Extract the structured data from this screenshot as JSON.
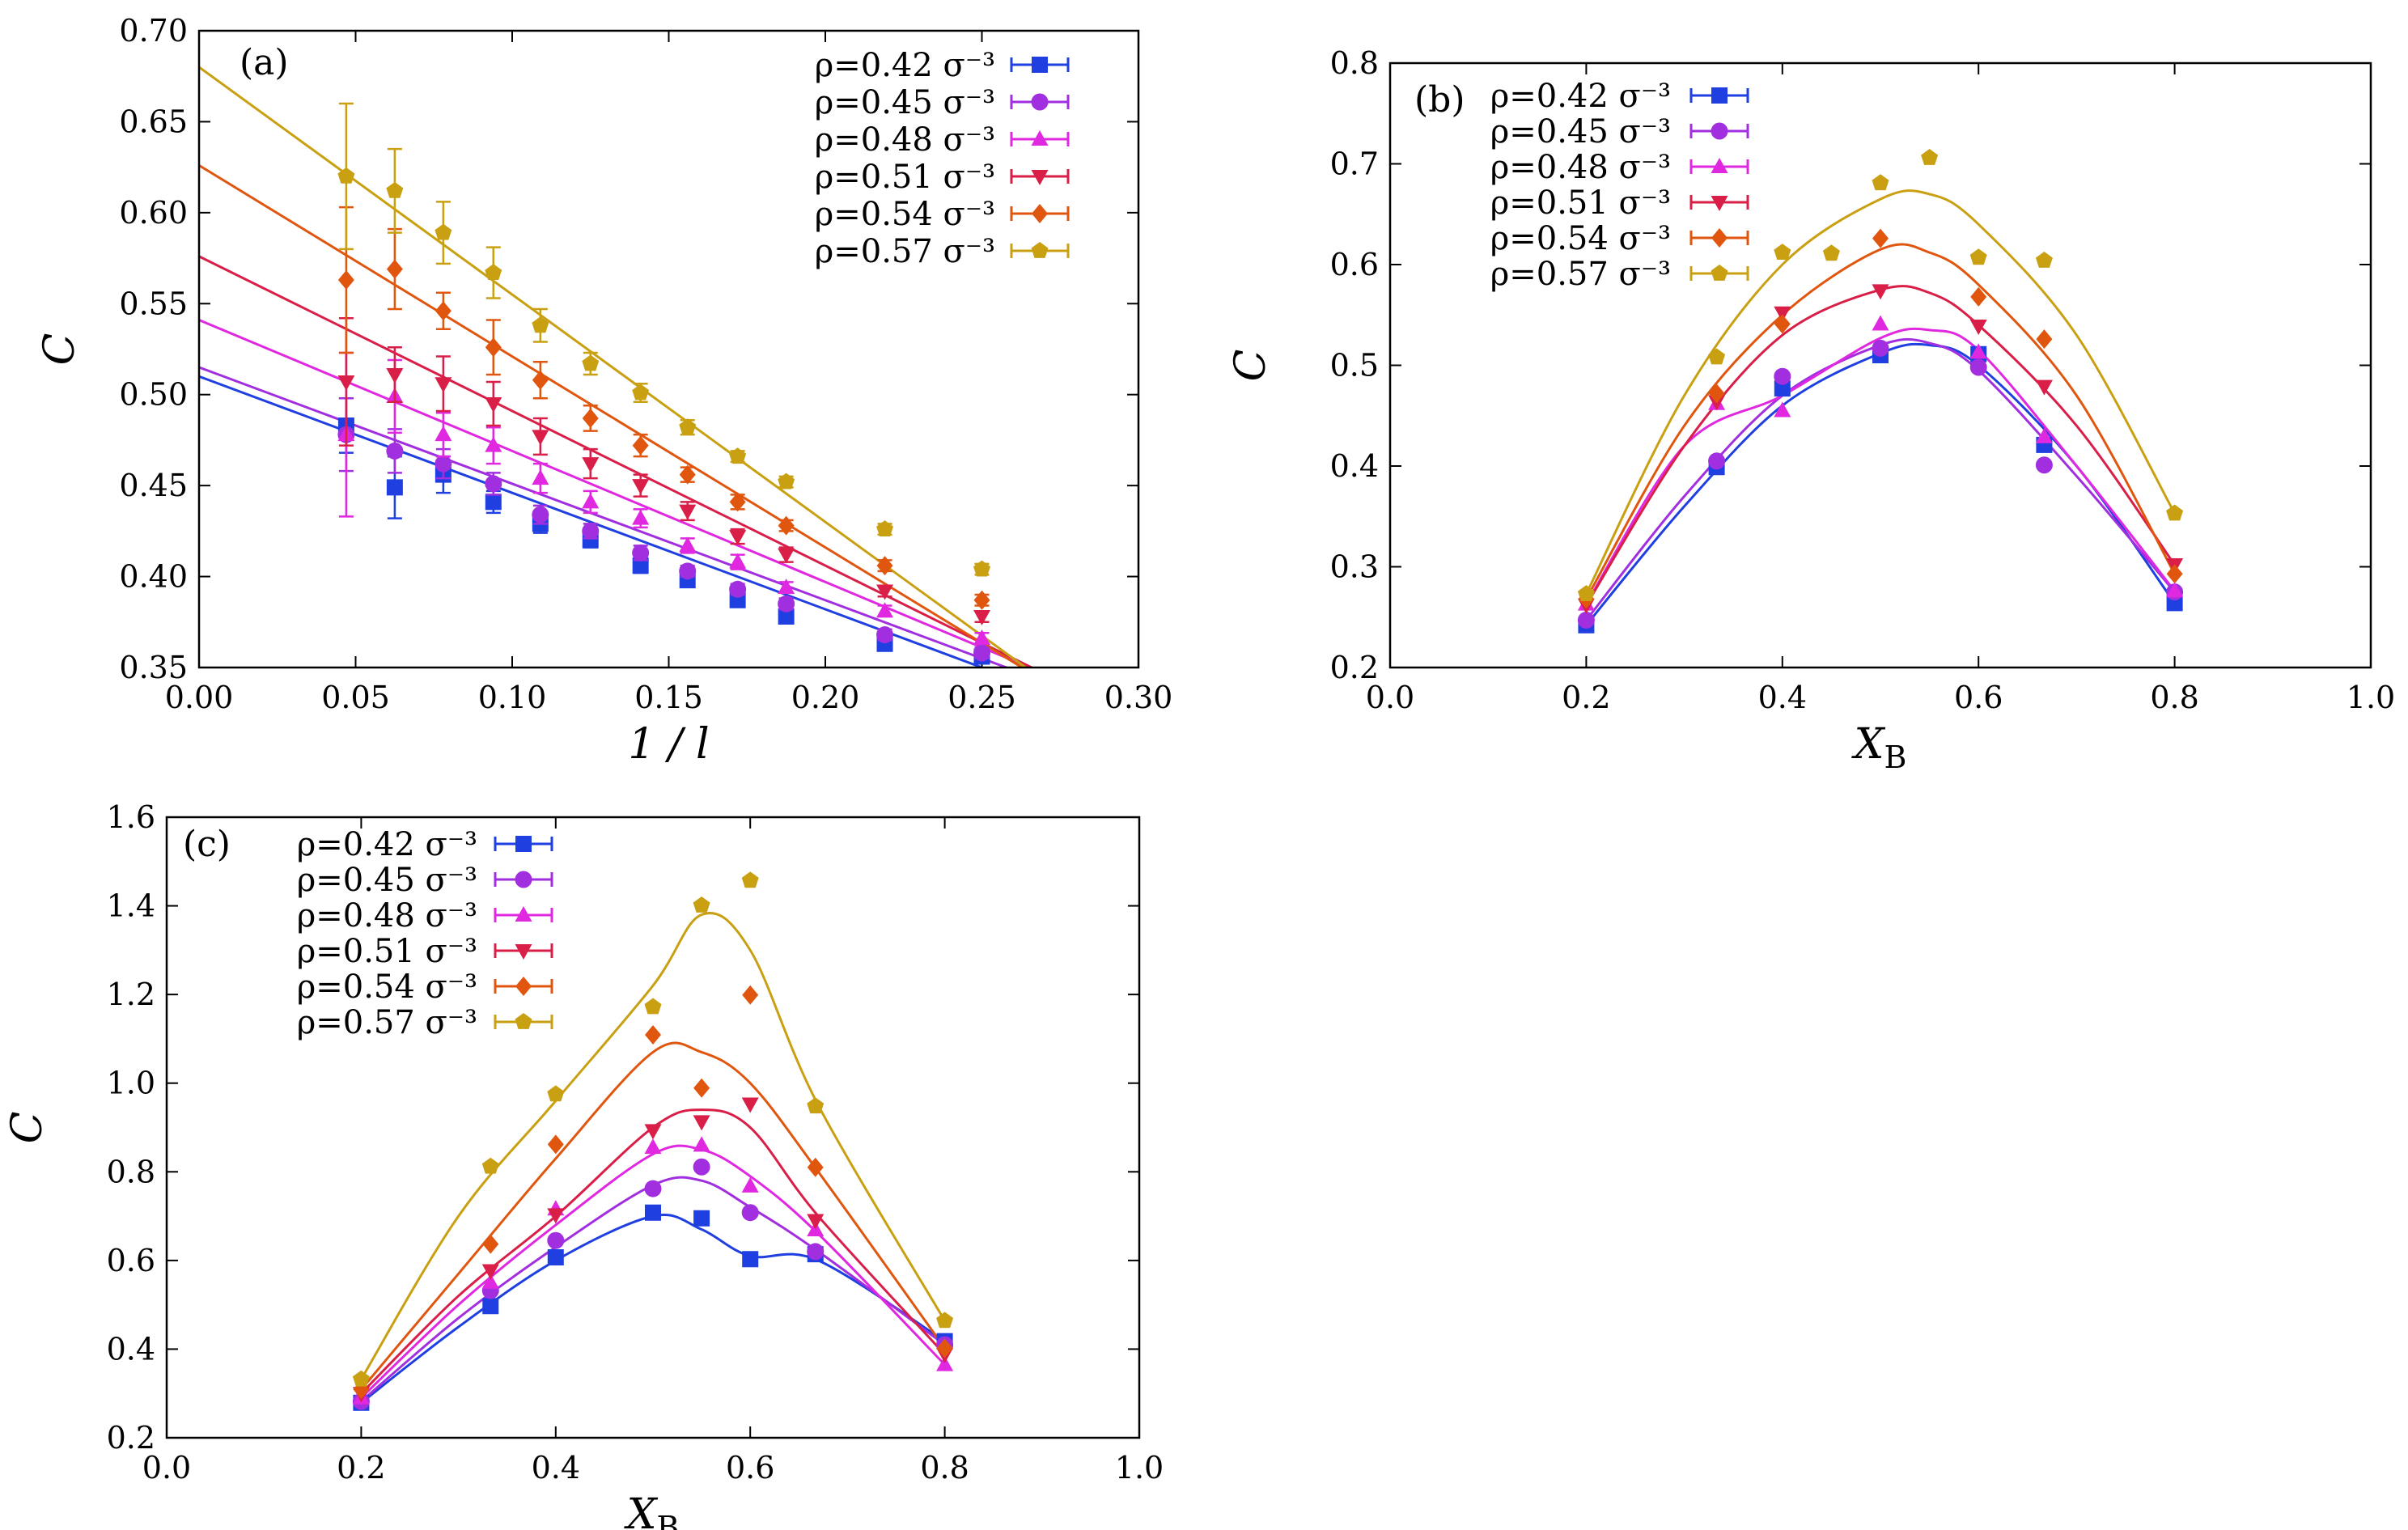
{
  "chart_data": [
    {
      "type": "scatter",
      "panel_label": "(a)",
      "xlabel": "1 / l",
      "ylabel": "C",
      "xlim": [
        0.0,
        0.3
      ],
      "ylim": [
        0.35,
        0.7
      ],
      "xticks": [
        "0.00",
        "0.05",
        "0.10",
        "0.15",
        "0.20",
        "0.25",
        "0.30"
      ],
      "yticks": [
        "0.35",
        "0.40",
        "0.45",
        "0.50",
        "0.55",
        "0.60",
        "0.65",
        "0.70"
      ],
      "legend_position": "top-right",
      "fit": "linear",
      "series": [
        {
          "name": "ρ=0.42 σ⁻³",
          "color": "#1f3fe0",
          "marker": "square",
          "x": [
            0.047,
            0.0625,
            0.078,
            0.094,
            0.109,
            0.125,
            0.141,
            0.156,
            0.172,
            0.1875,
            0.219,
            0.25
          ],
          "y": [
            0.483,
            0.449,
            0.456,
            0.441,
            0.429,
            0.42,
            0.406,
            0.398,
            0.387,
            0.378,
            0.363,
            0.356
          ],
          "err": [
            0.015,
            0.017,
            0.01,
            0.006,
            0.005,
            0.004,
            0.004,
            0.003,
            0.003,
            0.003,
            0.003,
            0.003
          ],
          "fit_line": [
            0.51,
            -0.64
          ]
        },
        {
          "name": "ρ=0.45 σ⁻³",
          "color": "#a12fe0",
          "marker": "circle",
          "x": [
            0.047,
            0.0625,
            0.078,
            0.094,
            0.109,
            0.125,
            0.141,
            0.156,
            0.172,
            0.1875,
            0.219,
            0.25
          ],
          "y": [
            0.478,
            0.469,
            0.462,
            0.451,
            0.434,
            0.425,
            0.413,
            0.403,
            0.393,
            0.385,
            0.368,
            0.358
          ],
          "err": [
            0.02,
            0.012,
            0.008,
            0.006,
            0.005,
            0.004,
            0.004,
            0.003,
            0.003,
            0.003,
            0.003,
            0.003
          ],
          "fit_line": [
            0.515,
            -0.64
          ]
        },
        {
          "name": "ρ=0.48 σ⁻³",
          "color": "#e028e0",
          "marker": "triangle",
          "x": [
            0.047,
            0.0625,
            0.078,
            0.094,
            0.109,
            0.125,
            0.141,
            0.156,
            0.172,
            0.1875,
            0.219,
            0.25
          ],
          "y": [
            0.478,
            0.499,
            0.478,
            0.472,
            0.454,
            0.441,
            0.432,
            0.417,
            0.408,
            0.394,
            0.381,
            0.366
          ],
          "err": [
            0.045,
            0.02,
            0.012,
            0.01,
            0.008,
            0.006,
            0.005,
            0.004,
            0.004,
            0.003,
            0.003,
            0.003
          ],
          "fit_line": [
            0.541,
            -0.72
          ]
        },
        {
          "name": "ρ=0.51 σ⁻³",
          "color": "#d91e48",
          "marker": "triangle-down",
          "x": [
            0.047,
            0.0625,
            0.078,
            0.094,
            0.109,
            0.125,
            0.141,
            0.156,
            0.172,
            0.1875,
            0.219,
            0.25
          ],
          "y": [
            0.507,
            0.511,
            0.506,
            0.495,
            0.477,
            0.462,
            0.45,
            0.436,
            0.422,
            0.412,
            0.392,
            0.378
          ],
          "err": [
            0.035,
            0.015,
            0.015,
            0.012,
            0.01,
            0.008,
            0.006,
            0.005,
            0.004,
            0.004,
            0.003,
            0.003
          ],
          "fit_line": [
            0.576,
            -0.85
          ]
        },
        {
          "name": "ρ=0.54 σ⁻³",
          "color": "#e0560f",
          "marker": "diamond",
          "x": [
            0.047,
            0.0625,
            0.078,
            0.094,
            0.109,
            0.125,
            0.141,
            0.156,
            0.172,
            0.1875,
            0.219,
            0.25
          ],
          "y": [
            0.563,
            0.569,
            0.546,
            0.526,
            0.508,
            0.487,
            0.472,
            0.456,
            0.441,
            0.428,
            0.406,
            0.387
          ],
          "err": [
            0.04,
            0.022,
            0.01,
            0.015,
            0.01,
            0.007,
            0.006,
            0.004,
            0.004,
            0.003,
            0.003,
            0.003
          ],
          "fit_line": [
            0.626,
            -1.05
          ]
        },
        {
          "name": "ρ=0.57 σ⁻³",
          "color": "#c9a012",
          "marker": "pentagon",
          "x": [
            0.047,
            0.0625,
            0.078,
            0.094,
            0.109,
            0.125,
            0.141,
            0.156,
            0.172,
            0.1875,
            0.219,
            0.25
          ],
          "y": [
            0.62,
            0.612,
            0.589,
            0.567,
            0.538,
            0.517,
            0.501,
            0.482,
            0.466,
            0.452,
            0.426,
            0.404
          ],
          "err": [
            0.04,
            0.023,
            0.017,
            0.014,
            0.009,
            0.006,
            0.005,
            0.004,
            0.003,
            0.003,
            0.003,
            0.003
          ],
          "fit_line": [
            0.68,
            -1.25
          ]
        }
      ]
    },
    {
      "type": "scatter",
      "panel_label": "(b)",
      "xlabel": "X",
      "xlabel_sub": "B",
      "ylabel": "C",
      "xlim": [
        0.0,
        1.0
      ],
      "ylim": [
        0.2,
        0.8
      ],
      "xticks": [
        "0.0",
        "0.2",
        "0.4",
        "0.6",
        "0.8",
        "1.0"
      ],
      "yticks": [
        "0.2",
        "0.3",
        "0.4",
        "0.5",
        "0.6",
        "0.7",
        "0.8"
      ],
      "legend_position": "top-left",
      "series": [
        {
          "name": "ρ=0.42 σ⁻³",
          "color": "#1f3fe0",
          "marker": "square",
          "x": [
            0.2,
            0.333,
            0.4,
            0.5,
            0.6,
            0.667,
            0.8
          ],
          "y": [
            0.242,
            0.399,
            0.477,
            0.51,
            0.511,
            0.421,
            0.264
          ],
          "curve_x": [
            0.2,
            0.3,
            0.4,
            0.5,
            0.55,
            0.6,
            0.7,
            0.8
          ],
          "curve_y": [
            0.242,
            0.36,
            0.46,
            0.512,
            0.52,
            0.5,
            0.4,
            0.264
          ]
        },
        {
          "name": "ρ=0.45 σ⁻³",
          "color": "#a12fe0",
          "marker": "circle",
          "x": [
            0.2,
            0.333,
            0.4,
            0.5,
            0.6,
            0.667,
            0.8
          ],
          "y": [
            0.247,
            0.405,
            0.489,
            0.517,
            0.498,
            0.401,
            0.275
          ],
          "curve_x": [
            0.2,
            0.3,
            0.4,
            0.5,
            0.55,
            0.6,
            0.7,
            0.8
          ],
          "curve_y": [
            0.247,
            0.37,
            0.47,
            0.52,
            0.522,
            0.495,
            0.39,
            0.275
          ]
        },
        {
          "name": "ρ=0.48 σ⁻³",
          "color": "#e028e0",
          "marker": "triangle",
          "x": [
            0.2,
            0.333,
            0.4,
            0.5,
            0.6,
            0.667,
            0.8
          ],
          "y": [
            0.263,
            0.462,
            0.455,
            0.541,
            0.513,
            0.429,
            0.276
          ],
          "curve_x": [
            0.2,
            0.3,
            0.4,
            0.5,
            0.55,
            0.6,
            0.7,
            0.8
          ],
          "curve_y": [
            0.263,
            0.42,
            0.47,
            0.527,
            0.535,
            0.515,
            0.4,
            0.276
          ]
        },
        {
          "name": "ρ=0.51 σ⁻³",
          "color": "#d91e48",
          "marker": "triangle-down",
          "x": [
            0.2,
            0.333,
            0.4,
            0.5,
            0.6,
            0.667,
            0.8
          ],
          "y": [
            0.262,
            0.464,
            0.552,
            0.574,
            0.539,
            0.479,
            0.302
          ],
          "curve_x": [
            0.2,
            0.3,
            0.4,
            0.5,
            0.55,
            0.6,
            0.7,
            0.8
          ],
          "curve_y": [
            0.262,
            0.42,
            0.53,
            0.575,
            0.572,
            0.54,
            0.44,
            0.302
          ]
        },
        {
          "name": "ρ=0.54 σ⁻³",
          "color": "#e0560f",
          "marker": "diamond",
          "x": [
            0.2,
            0.333,
            0.4,
            0.5,
            0.6,
            0.667,
            0.8
          ],
          "y": [
            0.268,
            0.472,
            0.541,
            0.626,
            0.568,
            0.526,
            0.293
          ],
          "curve_x": [
            0.2,
            0.3,
            0.4,
            0.5,
            0.55,
            0.6,
            0.7,
            0.8
          ],
          "curve_y": [
            0.268,
            0.44,
            0.55,
            0.615,
            0.612,
            0.58,
            0.47,
            0.293
          ]
        },
        {
          "name": "ρ=0.57 σ⁻³",
          "color": "#c9a012",
          "marker": "pentagon",
          "x": [
            0.2,
            0.333,
            0.4,
            0.45,
            0.5,
            0.55,
            0.6,
            0.667,
            0.8
          ],
          "y": [
            0.273,
            0.508,
            0.612,
            0.611,
            0.681,
            0.706,
            0.607,
            0.604,
            0.353
          ],
          "curve_x": [
            0.2,
            0.3,
            0.4,
            0.5,
            0.55,
            0.6,
            0.7,
            0.8
          ],
          "curve_y": [
            0.273,
            0.47,
            0.6,
            0.665,
            0.67,
            0.64,
            0.53,
            0.353
          ]
        }
      ]
    },
    {
      "type": "scatter",
      "panel_label": "(c)",
      "xlabel": "X",
      "xlabel_sub": "B",
      "ylabel": "C",
      "xlim": [
        0.0,
        1.0
      ],
      "ylim": [
        0.2,
        1.6
      ],
      "xticks": [
        "0.0",
        "0.2",
        "0.4",
        "0.6",
        "0.8",
        "1.0"
      ],
      "yticks": [
        "0.2",
        "0.4",
        "0.6",
        "0.8",
        "1.0",
        "1.2",
        "1.4",
        "1.6"
      ],
      "legend_position": "top-left",
      "series": [
        {
          "name": "ρ=0.42 σ⁻³",
          "color": "#1f3fe0",
          "marker": "square",
          "x": [
            0.2,
            0.333,
            0.4,
            0.5,
            0.55,
            0.6,
            0.667,
            0.8
          ],
          "y": [
            0.279,
            0.497,
            0.607,
            0.708,
            0.695,
            0.603,
            0.614,
            0.418
          ],
          "curve_x": [
            0.2,
            0.3,
            0.4,
            0.5,
            0.55,
            0.6,
            0.67,
            0.8
          ],
          "curve_y": [
            0.279,
            0.45,
            0.6,
            0.7,
            0.67,
            0.61,
            0.6,
            0.418
          ]
        },
        {
          "name": "ρ=0.45 σ⁻³",
          "color": "#a12fe0",
          "marker": "circle",
          "x": [
            0.2,
            0.333,
            0.4,
            0.5,
            0.55,
            0.6,
            0.667,
            0.8
          ],
          "y": [
            0.282,
            0.532,
            0.645,
            0.762,
            0.811,
            0.708,
            0.62,
            0.41
          ],
          "curve_x": [
            0.2,
            0.3,
            0.4,
            0.5,
            0.55,
            0.6,
            0.67,
            0.8
          ],
          "curve_y": [
            0.282,
            0.47,
            0.63,
            0.77,
            0.78,
            0.72,
            0.62,
            0.41
          ]
        },
        {
          "name": "ρ=0.48 σ⁻³",
          "color": "#e028e0",
          "marker": "triangle",
          "x": [
            0.2,
            0.333,
            0.4,
            0.5,
            0.55,
            0.6,
            0.667,
            0.8
          ],
          "y": [
            0.29,
            0.551,
            0.716,
            0.855,
            0.86,
            0.768,
            0.669,
            0.365
          ],
          "curve_x": [
            0.2,
            0.3,
            0.4,
            0.5,
            0.55,
            0.6,
            0.67,
            0.8
          ],
          "curve_y": [
            0.29,
            0.5,
            0.68,
            0.84,
            0.85,
            0.79,
            0.66,
            0.365
          ]
        },
        {
          "name": "ρ=0.51 σ⁻³",
          "color": "#d91e48",
          "marker": "triangle-down",
          "x": [
            0.2,
            0.333,
            0.4,
            0.5,
            0.55,
            0.6,
            0.667,
            0.8
          ],
          "y": [
            0.3,
            0.577,
            0.703,
            0.893,
            0.913,
            0.953,
            0.69,
            0.388
          ],
          "curve_x": [
            0.2,
            0.3,
            0.4,
            0.5,
            0.55,
            0.6,
            0.67,
            0.8
          ],
          "curve_y": [
            0.3,
            0.52,
            0.7,
            0.9,
            0.94,
            0.9,
            0.7,
            0.388
          ]
        },
        {
          "name": "ρ=0.54 σ⁻³",
          "color": "#e0560f",
          "marker": "diamond",
          "x": [
            0.2,
            0.333,
            0.4,
            0.5,
            0.55,
            0.6,
            0.667,
            0.8
          ],
          "y": [
            0.309,
            0.637,
            0.862,
            1.109,
            0.989,
            1.199,
            0.81,
            0.402
          ],
          "curve_x": [
            0.2,
            0.3,
            0.4,
            0.5,
            0.55,
            0.6,
            0.67,
            0.8
          ],
          "curve_y": [
            0.309,
            0.57,
            0.83,
            1.07,
            1.07,
            1.0,
            0.8,
            0.402
          ]
        },
        {
          "name": "ρ=0.57 σ⁻³",
          "color": "#c9a012",
          "marker": "pentagon",
          "x": [
            0.2,
            0.333,
            0.4,
            0.5,
            0.55,
            0.6,
            0.667,
            0.8
          ],
          "y": [
            0.332,
            0.812,
            0.975,
            1.172,
            1.401,
            1.457,
            0.948,
            0.464
          ],
          "curve_x": [
            0.2,
            0.3,
            0.4,
            0.5,
            0.55,
            0.6,
            0.67,
            0.8
          ],
          "curve_y": [
            0.332,
            0.7,
            0.96,
            1.22,
            1.38,
            1.3,
            0.95,
            0.464
          ]
        }
      ]
    }
  ]
}
